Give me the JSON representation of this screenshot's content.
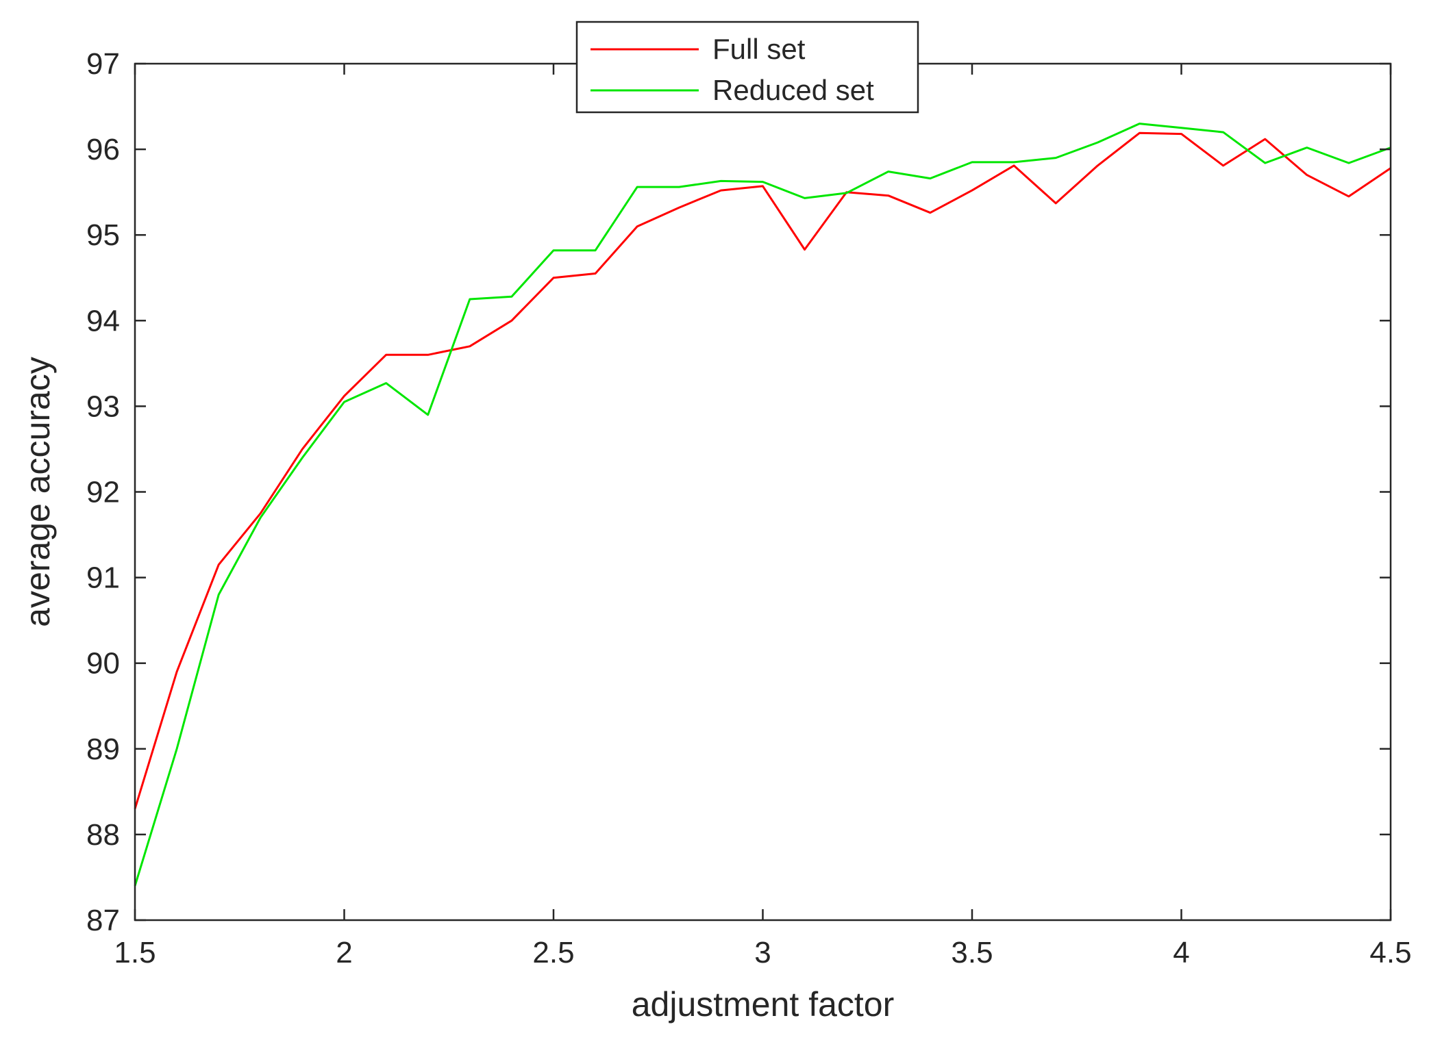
{
  "chart_data": {
    "type": "line",
    "title": "",
    "xlabel": "adjustment factor",
    "ylabel": "average accuracy",
    "xlim": [
      1.5,
      4.5
    ],
    "ylim": [
      87,
      97
    ],
    "xticks": [
      1.5,
      2,
      2.5,
      3,
      3.5,
      4,
      4.5
    ],
    "yticks": [
      87,
      88,
      89,
      90,
      91,
      92,
      93,
      94,
      95,
      96,
      97
    ],
    "xtick_labels": [
      "1.5",
      "2",
      "2.5",
      "3",
      "3.5",
      "4",
      "4.5"
    ],
    "ytick_labels": [
      "87",
      "88",
      "89",
      "90",
      "91",
      "92",
      "93",
      "94",
      "95",
      "96",
      "97"
    ],
    "grid": false,
    "legend_position": "top-center",
    "x": [
      1.5,
      1.6,
      1.7,
      1.8,
      1.9,
      2.0,
      2.1,
      2.2,
      2.3,
      2.4,
      2.5,
      2.6,
      2.7,
      2.8,
      2.9,
      3.0,
      3.1,
      3.2,
      3.3,
      3.4,
      3.5,
      3.6,
      3.7,
      3.8,
      3.9,
      4.0,
      4.1,
      4.2,
      4.3,
      4.4,
      4.5
    ],
    "series": [
      {
        "name": "Full set",
        "color": "#ff0000",
        "values": [
          88.3,
          89.9,
          91.15,
          91.75,
          92.5,
          93.12,
          93.6,
          93.6,
          93.7,
          94.0,
          94.5,
          94.55,
          95.1,
          95.32,
          95.52,
          95.57,
          94.83,
          95.5,
          95.46,
          95.26,
          95.52,
          95.81,
          95.37,
          95.81,
          96.19,
          96.18,
          95.81,
          96.12,
          95.7,
          95.45,
          95.78
        ]
      },
      {
        "name": "Reduced set",
        "color": "#00e600",
        "values": [
          87.4,
          89.0,
          90.8,
          91.7,
          92.4,
          93.05,
          93.27,
          92.9,
          94.25,
          94.28,
          94.82,
          94.82,
          95.56,
          95.56,
          95.63,
          95.62,
          95.43,
          95.49,
          95.74,
          95.66,
          95.85,
          95.85,
          95.9,
          96.08,
          96.3,
          96.25,
          96.2,
          95.84,
          96.02,
          95.84,
          96.02
        ]
      }
    ]
  }
}
